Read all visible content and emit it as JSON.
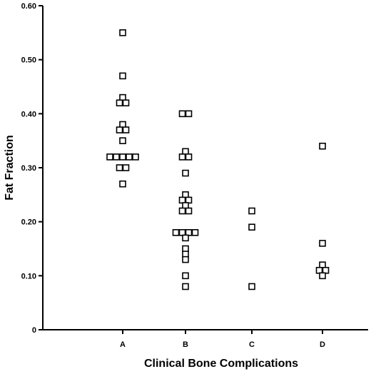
{
  "chart_data": {
    "type": "scatter",
    "title": "",
    "xlabel": "Clinical Bone Complications",
    "ylabel": "Fat Fraction",
    "categories": [
      "A",
      "B",
      "C",
      "D"
    ],
    "ylim": [
      0,
      0.6
    ],
    "yticks": [
      "0",
      "0.10",
      "0.20",
      "0.30",
      "0.40",
      "0.50",
      "0.60"
    ],
    "grid": false,
    "marker": "open-square",
    "points": [
      {
        "category": "A",
        "y": 0.55
      },
      {
        "category": "A",
        "y": 0.47
      },
      {
        "category": "A",
        "y": 0.43
      },
      {
        "category": "A",
        "y": 0.42
      },
      {
        "category": "A",
        "y": 0.42
      },
      {
        "category": "A",
        "y": 0.38
      },
      {
        "category": "A",
        "y": 0.37
      },
      {
        "category": "A",
        "y": 0.37
      },
      {
        "category": "A",
        "y": 0.35
      },
      {
        "category": "A",
        "y": 0.32
      },
      {
        "category": "A",
        "y": 0.32
      },
      {
        "category": "A",
        "y": 0.32
      },
      {
        "category": "A",
        "y": 0.32
      },
      {
        "category": "A",
        "y": 0.32
      },
      {
        "category": "A",
        "y": 0.3
      },
      {
        "category": "A",
        "y": 0.3
      },
      {
        "category": "A",
        "y": 0.27
      },
      {
        "category": "B",
        "y": 0.4
      },
      {
        "category": "B",
        "y": 0.4
      },
      {
        "category": "B",
        "y": 0.33
      },
      {
        "category": "B",
        "y": 0.32
      },
      {
        "category": "B",
        "y": 0.32
      },
      {
        "category": "B",
        "y": 0.29
      },
      {
        "category": "B",
        "y": 0.25
      },
      {
        "category": "B",
        "y": 0.24
      },
      {
        "category": "B",
        "y": 0.24
      },
      {
        "category": "B",
        "y": 0.23
      },
      {
        "category": "B",
        "y": 0.22
      },
      {
        "category": "B",
        "y": 0.22
      },
      {
        "category": "B",
        "y": 0.18
      },
      {
        "category": "B",
        "y": 0.18
      },
      {
        "category": "B",
        "y": 0.18
      },
      {
        "category": "B",
        "y": 0.18
      },
      {
        "category": "B",
        "y": 0.17
      },
      {
        "category": "B",
        "y": 0.15
      },
      {
        "category": "B",
        "y": 0.14
      },
      {
        "category": "B",
        "y": 0.13
      },
      {
        "category": "B",
        "y": 0.1
      },
      {
        "category": "B",
        "y": 0.08
      },
      {
        "category": "C",
        "y": 0.22
      },
      {
        "category": "C",
        "y": 0.19
      },
      {
        "category": "C",
        "y": 0.08
      },
      {
        "category": "D",
        "y": 0.34
      },
      {
        "category": "D",
        "y": 0.16
      },
      {
        "category": "D",
        "y": 0.12
      },
      {
        "category": "D",
        "y": 0.11
      },
      {
        "category": "D",
        "y": 0.11
      },
      {
        "category": "D",
        "y": 0.1
      }
    ]
  }
}
